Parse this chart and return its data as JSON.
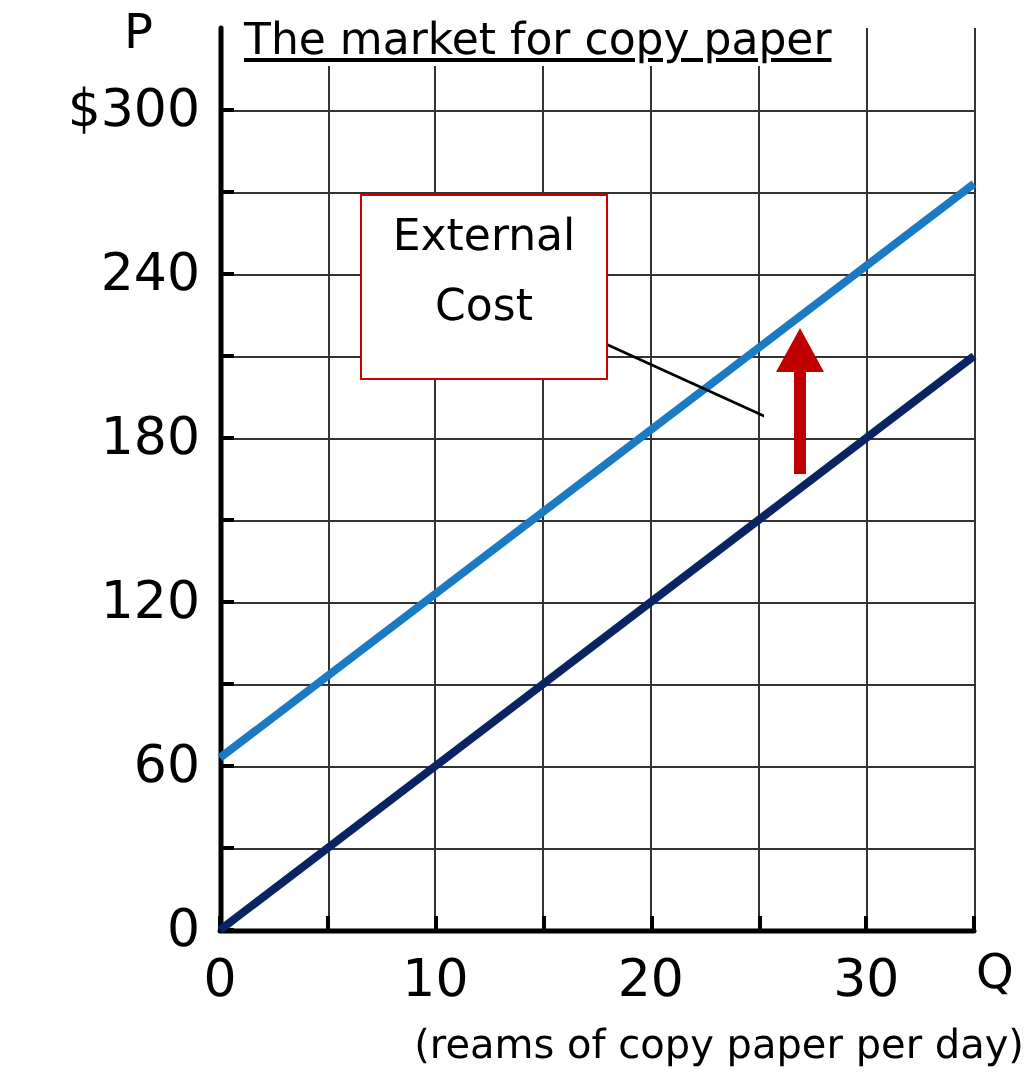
{
  "chart_data": {
    "type": "line",
    "title": "The market for copy paper",
    "xlabel": "Q",
    "ylabel": "P",
    "x": [
      0,
      35
    ],
    "series": [
      {
        "color": "#0a2463",
        "values": [
          0,
          210
        ]
      },
      {
        "color": "#1a7ac4",
        "values": [
          63,
          273
        ]
      }
    ],
    "xlim": [
      0,
      35
    ],
    "xticks": [
      0,
      {
        "value": 5,
        "label": null
      },
      10,
      {
        "value": 15,
        "label": null
      },
      20,
      {
        "value": 25,
        "label": null
      },
      30,
      {
        "value": 35,
        "label": null
      }
    ],
    "ylim": [
      0,
      330
    ],
    "yticks": [
      0,
      {
        "value": 30,
        "label": null
      },
      60,
      {
        "value": 90,
        "label": null
      },
      120,
      {
        "value": 150,
        "label": null
      },
      180,
      {
        "value": 210,
        "label": null
      },
      240,
      {
        "value": 270,
        "label": null
      },
      {
        "value": 300,
        "label": "$300"
      }
    ],
    "grid": true,
    "marker": "none",
    "line_style": "solid",
    "annotations": [
      "(reams of copy paper per day)",
      "External Cost"
    ]
  }
}
